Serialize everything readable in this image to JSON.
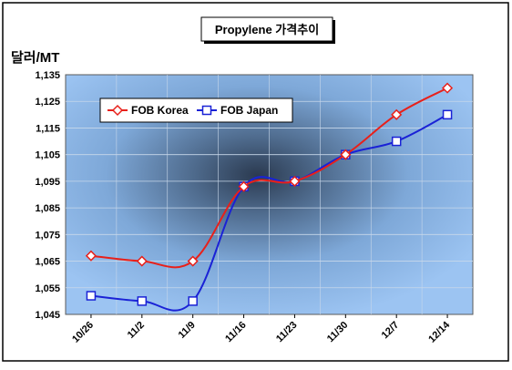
{
  "chart_data": {
    "type": "line",
    "title": "Propylene 가격추이",
    "ylabel": "달러/MT",
    "xlabel": "",
    "categories": [
      "10/26",
      "11/2",
      "11/9",
      "11/16",
      "11/23",
      "11/30",
      "12/7",
      "12/14"
    ],
    "ylim": [
      1045,
      1135
    ],
    "yticks": [
      1045,
      1055,
      1065,
      1075,
      1085,
      1095,
      1105,
      1115,
      1125,
      1135
    ],
    "ytick_labels": [
      "1,045",
      "1,055",
      "1,065",
      "1,075",
      "1,085",
      "1,095",
      "1,105",
      "1,115",
      "1,125",
      "1,135"
    ],
    "grid": true,
    "legend_position": "top-left",
    "series": [
      {
        "name": "FOB Korea",
        "color": "#e8201a",
        "marker": "diamond",
        "values": [
          1067,
          1065,
          1065,
          1093,
          1095,
          1105,
          1120,
          1130
        ]
      },
      {
        "name": "FOB Japan",
        "color": "#1a22d6",
        "marker": "square",
        "values": [
          1052,
          1050,
          1050,
          1093,
          1095,
          1105,
          1110,
          1120
        ]
      }
    ]
  }
}
